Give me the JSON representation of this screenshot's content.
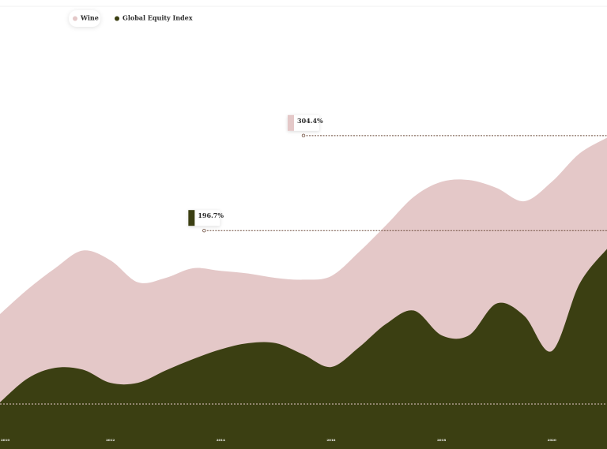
{
  "chart_data": {
    "type": "area",
    "x": [
      2010,
      2010.5,
      2011,
      2011.5,
      2012,
      2012.5,
      2013,
      2013.5,
      2014,
      2014.5,
      2015,
      2015.5,
      2016,
      2016.5,
      2017,
      2017.5,
      2018,
      2018.5,
      2019,
      2019.5,
      2020,
      2020.5,
      2021
    ],
    "series": [
      {
        "name": "Wine",
        "color": "#e4c8c8",
        "values": [
          102,
          130,
          154,
          174,
          163,
          138,
          143,
          154,
          151,
          148,
          143,
          141,
          145,
          172,
          203,
          235,
          252,
          254,
          245,
          230,
          252,
          284,
          302
        ]
      },
      {
        "name": "Global Equity Index",
        "color": "#3b3f12",
        "values": [
          2,
          29,
          41,
          39,
          24,
          24,
          38,
          51,
          62,
          69,
          69,
          56,
          42,
          64,
          91,
          106,
          78,
          78,
          114,
          100,
          60,
          136,
          176
        ]
      }
    ],
    "annotations": [
      {
        "label": "304.4%",
        "value": 304.4,
        "x": 2015.5,
        "color": "#e4c8c8"
      },
      {
        "label": "196.7%",
        "value": 196.7,
        "x": 2013.7,
        "color": "#3b3f12"
      }
    ],
    "xlim": [
      2010,
      2021
    ],
    "xticks": [
      2010,
      2012,
      2014,
      2016,
      2018,
      2020
    ],
    "ylim": [
      0,
      400
    ]
  }
}
